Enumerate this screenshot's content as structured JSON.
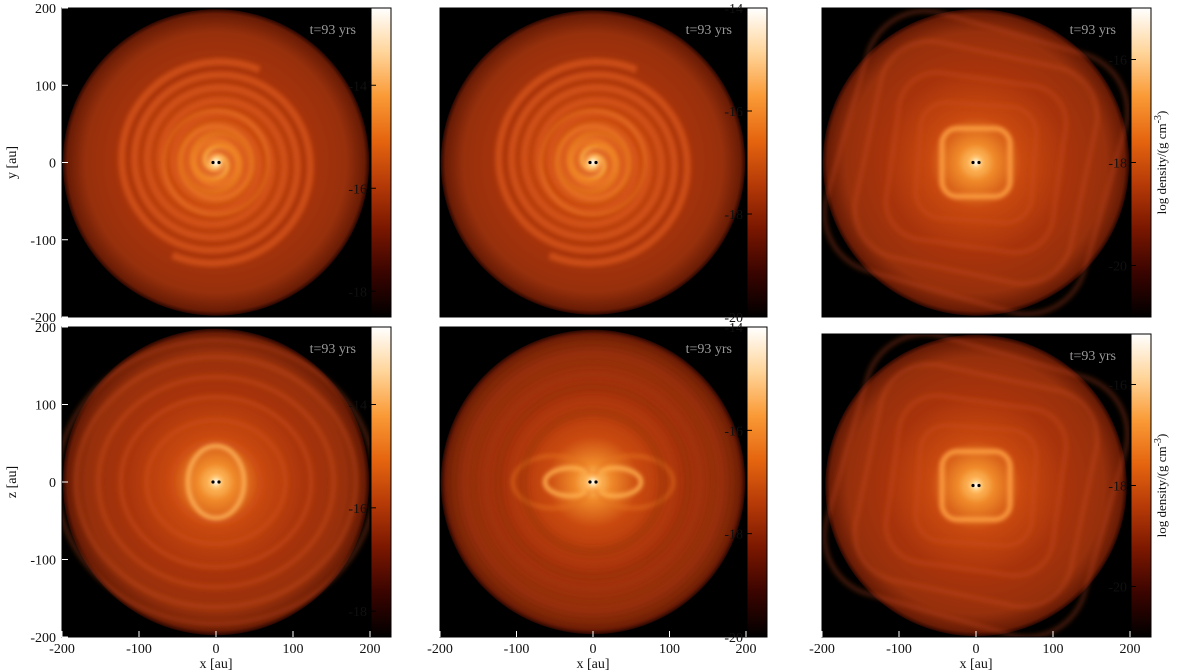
{
  "figure": {
    "time_label": "t=93 yrs",
    "x_axis_label": "x [au]",
    "y_axis_label": "y [au]",
    "z_axis_label": "z [au]",
    "colorbar_title": "log density/(g cm",
    "colorbar_title_sup": "-3",
    "colorbar_title_end": ")",
    "colormap": [
      "#000000",
      "#3a0400",
      "#7a1700",
      "#b63a07",
      "#e5650f",
      "#fa9a36",
      "#ffd59a",
      "#ffffff"
    ],
    "background_color": "#000000"
  },
  "chart_data": [
    {
      "type": "heatmap",
      "panel": "top-left",
      "view": "x-y plane",
      "title": "t=93 yrs",
      "xlabel": "",
      "ylabel": "y [au]",
      "xlim": [
        -200,
        200
      ],
      "ylim": [
        -200,
        200
      ],
      "x_ticks": [],
      "y_ticks": [
        "200",
        "100",
        "0",
        "-100",
        "-200"
      ],
      "colorbar_ticks": [
        "-14",
        "-16",
        "-18"
      ],
      "colorbar_range": [
        -18.5,
        -12.5
      ],
      "structure": "two-armed spiral"
    },
    {
      "type": "heatmap",
      "panel": "top-middle",
      "view": "x-y plane",
      "title": "t=93 yrs",
      "xlabel": "",
      "ylabel": "",
      "xlim": [
        -200,
        200
      ],
      "ylim": [
        -200,
        200
      ],
      "x_ticks": [],
      "y_ticks": [],
      "colorbar_ticks": [
        "-14",
        "-16",
        "-18",
        "-20"
      ],
      "colorbar_range": [
        -20,
        -14
      ],
      "structure": "two-armed spiral"
    },
    {
      "type": "heatmap",
      "panel": "top-right",
      "view": "x-y plane",
      "title": "t=93 yrs",
      "xlabel": "",
      "ylabel": "",
      "xlim": [
        -200,
        200
      ],
      "ylim": [
        -200,
        200
      ],
      "x_ticks": [],
      "y_ticks": [],
      "colorbar_ticks": [
        "-16",
        "-18",
        "-20"
      ],
      "colorbar_range": [
        -21,
        -15
      ],
      "structure": "square shells"
    },
    {
      "type": "heatmap",
      "panel": "bottom-left",
      "view": "x-z plane",
      "title": "t=93 yrs",
      "xlabel": "x [au]",
      "ylabel": "z [au]",
      "xlim": [
        -200,
        200
      ],
      "ylim": [
        -200,
        200
      ],
      "x_ticks": [
        "-200",
        "-100",
        "0",
        "100",
        "200"
      ],
      "y_ticks": [
        "200",
        "100",
        "0",
        "-100",
        "-200"
      ],
      "colorbar_ticks": [
        "-14",
        "-16",
        "-18"
      ],
      "colorbar_range": [
        -18.5,
        -12.5
      ],
      "structure": "nested shells"
    },
    {
      "type": "heatmap",
      "panel": "bottom-middle",
      "view": "x-z plane",
      "title": "t=93 yrs",
      "xlabel": "x [au]",
      "ylabel": "",
      "xlim": [
        -200,
        200
      ],
      "ylim": [
        -200,
        200
      ],
      "x_ticks": [
        "-200",
        "-100",
        "0",
        "100",
        "200"
      ],
      "y_ticks": [],
      "colorbar_ticks": [
        "-14",
        "-16",
        "-18",
        "-20"
      ],
      "colorbar_range": [
        -20,
        -14
      ],
      "structure": "bipolar lobes"
    },
    {
      "type": "heatmap",
      "panel": "bottom-right",
      "view": "x-z plane",
      "title": "t=93 yrs",
      "xlabel": "x [au]",
      "ylabel": "",
      "xlim": [
        -200,
        200
      ],
      "ylim": [
        -200,
        200
      ],
      "x_ticks": [
        "-200",
        "-100",
        "0",
        "100",
        "200"
      ],
      "y_ticks": [],
      "colorbar_ticks": [
        "-16",
        "-18",
        "-20"
      ],
      "colorbar_range": [
        -21,
        -15
      ],
      "structure": "square shells"
    }
  ]
}
